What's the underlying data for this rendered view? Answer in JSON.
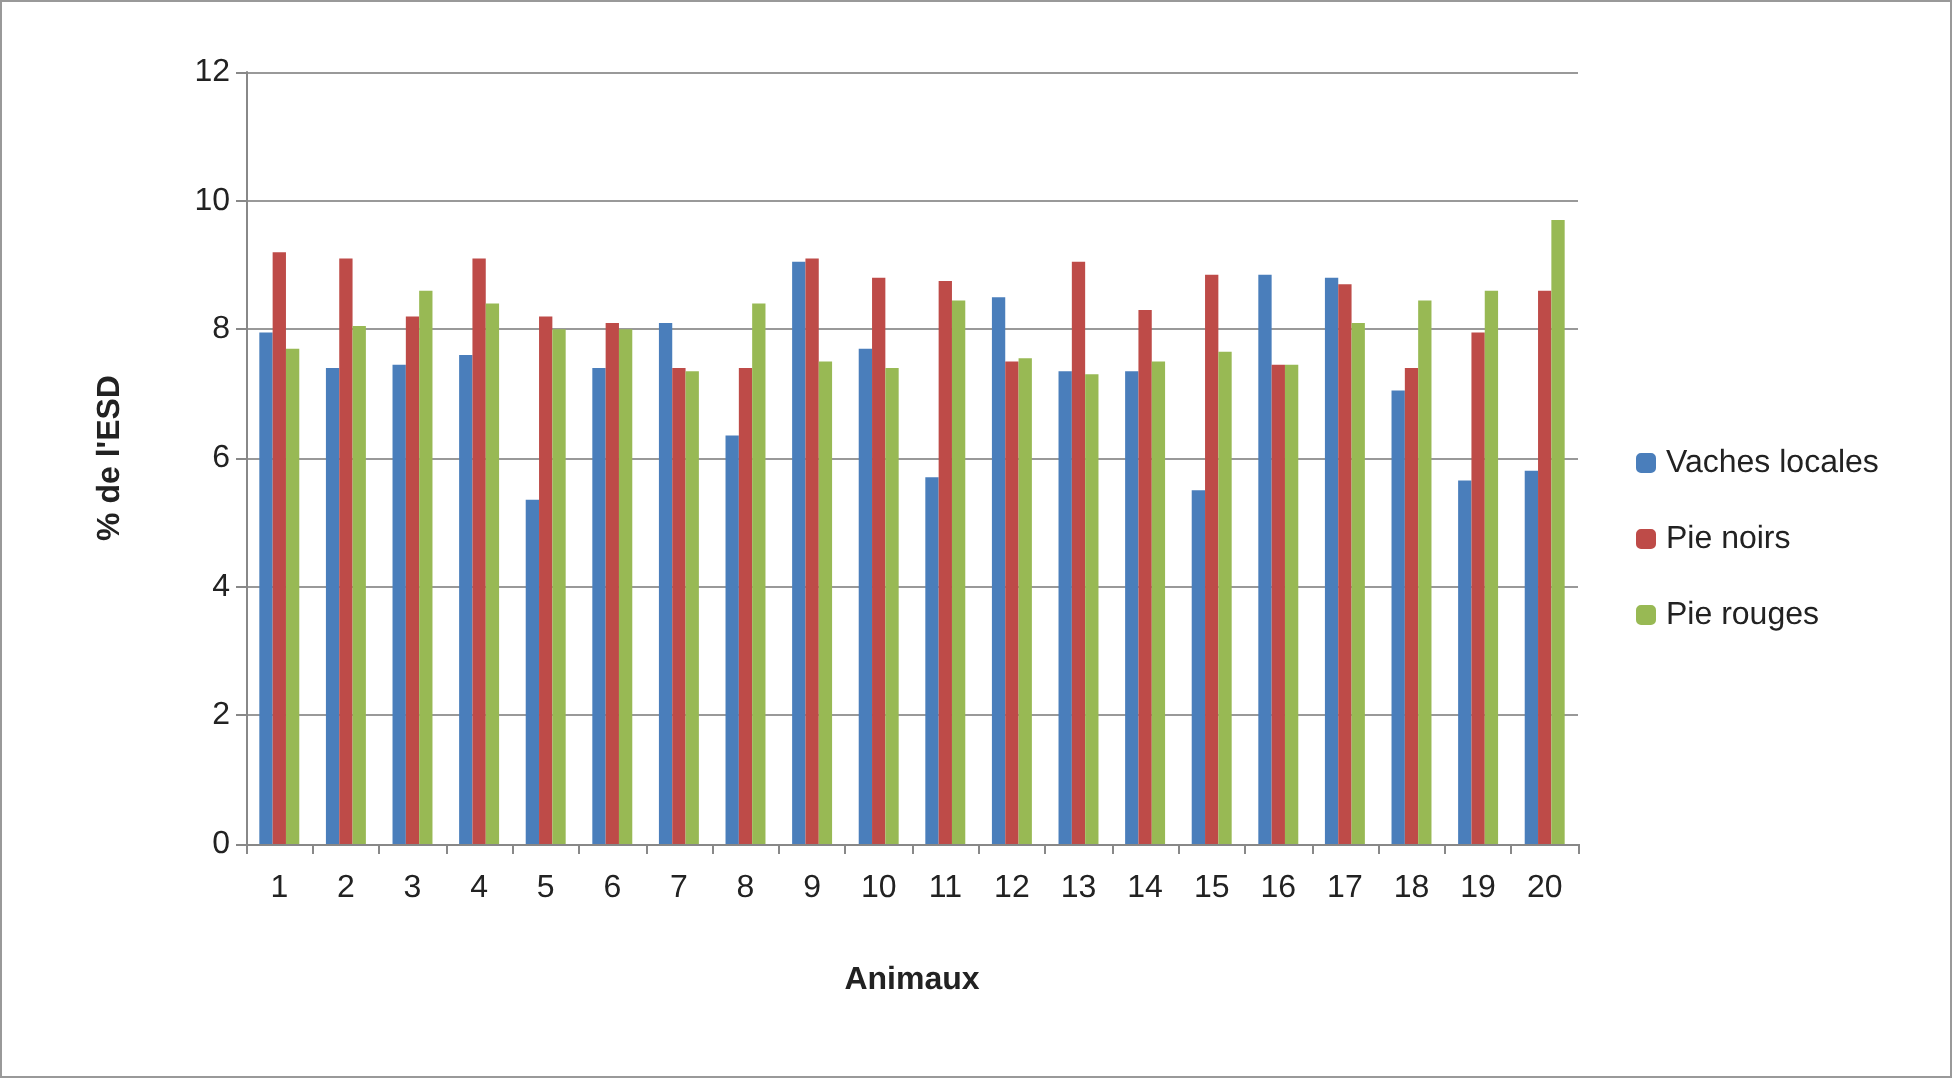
{
  "chart_data": {
    "type": "bar",
    "xlabel": "Animaux",
    "ylabel": "% de l'ESD",
    "categories": [
      "1",
      "2",
      "3",
      "4",
      "5",
      "6",
      "7",
      "8",
      "9",
      "10",
      "11",
      "12",
      "13",
      "14",
      "15",
      "16",
      "17",
      "18",
      "19",
      "20"
    ],
    "series": [
      {
        "name": "Vaches locales",
        "color": "#4a7ebb",
        "values": [
          7.95,
          7.4,
          7.45,
          7.6,
          5.35,
          7.4,
          8.1,
          6.35,
          9.05,
          7.7,
          5.7,
          8.5,
          7.35,
          7.35,
          5.5,
          8.85,
          8.8,
          7.05,
          5.65,
          5.8
        ]
      },
      {
        "name": "Pie noirs",
        "color": "#be4b48",
        "values": [
          9.2,
          9.1,
          8.2,
          9.1,
          8.2,
          8.1,
          7.4,
          7.4,
          9.1,
          8.8,
          8.75,
          7.5,
          9.05,
          8.3,
          8.85,
          7.45,
          8.7,
          7.4,
          7.95,
          8.6
        ]
      },
      {
        "name": "Pie rouges",
        "color": "#98b954",
        "values": [
          7.7,
          8.05,
          8.6,
          8.4,
          8.0,
          8.0,
          7.35,
          8.4,
          7.5,
          7.4,
          8.45,
          7.55,
          7.3,
          7.5,
          7.65,
          7.45,
          8.1,
          8.45,
          8.6,
          9.7
        ]
      }
    ],
    "ylim": [
      0,
      12
    ],
    "yticks": [
      0,
      2,
      4,
      6,
      8,
      10,
      12
    ],
    "grid": "y",
    "legend": "right"
  }
}
